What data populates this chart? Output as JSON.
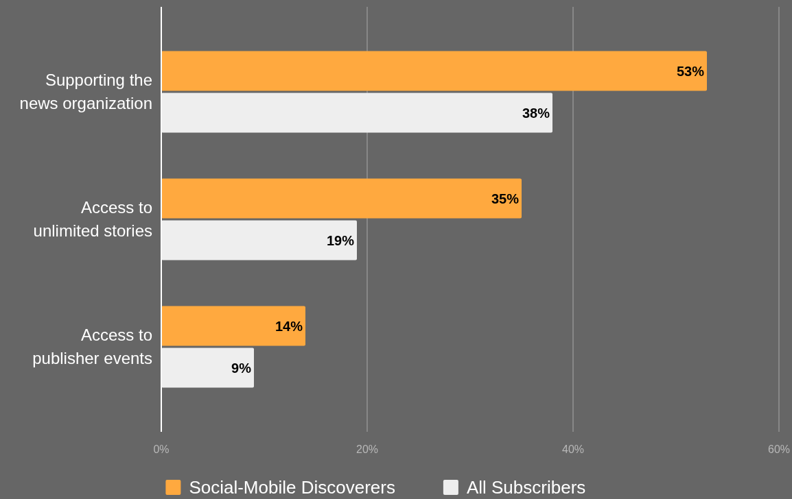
{
  "chart_data": {
    "type": "bar",
    "orientation": "horizontal",
    "categories": [
      "Supporting the news organization",
      "Access to unlimited stories",
      "Access to publisher events"
    ],
    "series": [
      {
        "name": "Social-Mobile Discoverers",
        "color": "#ffa93f",
        "values": [
          53,
          35,
          14
        ]
      },
      {
        "name": "All Subscribers",
        "color": "#eeeeee",
        "values": [
          38,
          19,
          9
        ]
      }
    ],
    "xlim": [
      0,
      60
    ],
    "xticks": [
      {
        "value": 0,
        "label": "0%"
      },
      {
        "value": 20,
        "label": "20%"
      },
      {
        "value": 40,
        "label": "40%"
      },
      {
        "value": 60,
        "label": "60%"
      }
    ],
    "value_labels": [
      [
        "53%",
        "35%",
        "14%"
      ],
      [
        "38%",
        "19%",
        "9%"
      ]
    ],
    "grid": "x",
    "legend": "bottom"
  }
}
